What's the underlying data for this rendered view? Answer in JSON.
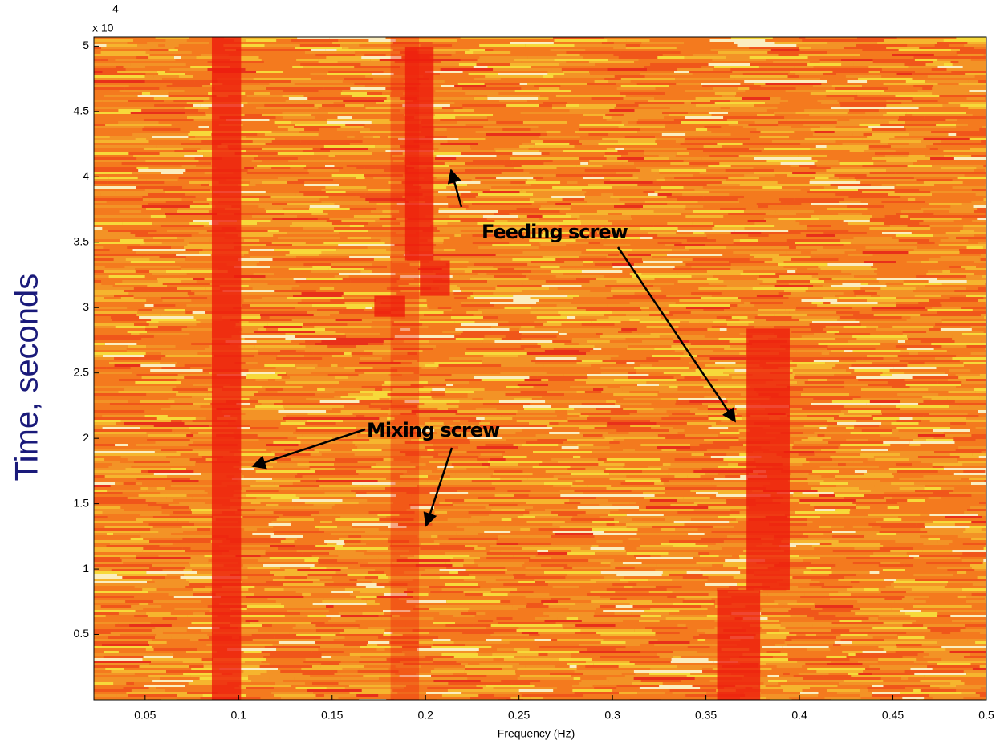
{
  "chart_data": {
    "type": "spectrogram",
    "x_label": "Frequency (Hz)",
    "y_label": "Time, seconds",
    "y_scale_label": "x 10",
    "y_scale_exponent": "4",
    "xlim": [
      0.0226,
      0.5
    ],
    "ylim": [
      0,
      5.07
    ],
    "xticks": [
      0.05,
      0.1,
      0.15,
      0.2,
      0.25,
      0.3,
      0.35,
      0.4,
      0.45,
      0.5
    ],
    "yticks": [
      0.5,
      1,
      1.5,
      2,
      2.5,
      3,
      3.5,
      4,
      4.5,
      5
    ],
    "band_color": "#ee1c0c",
    "bands": [
      {
        "x": [
          0.0857,
          0.1013
        ],
        "y": [
          0,
          5.07
        ]
      },
      {
        "x": [
          0.1813,
          0.1965
        ],
        "y": [
          0,
          5.07
        ]
      },
      {
        "x": [
          0.1891,
          0.2043
        ],
        "y": [
          3.36,
          4.99
        ]
      },
      {
        "x": [
          0.197,
          0.213
        ],
        "y": [
          3.09,
          3.36
        ]
      },
      {
        "x": [
          0.1726,
          0.1891
        ],
        "y": [
          2.93,
          3.09
        ]
      },
      {
        "x": [
          0.3717,
          0.3948
        ],
        "y": [
          0.84,
          2.84
        ]
      },
      {
        "x": [
          0.356,
          0.379
        ],
        "y": [
          0,
          0.84
        ]
      }
    ],
    "annotations": [
      {
        "text": "Feeding screw"
      },
      {
        "text": "Mixing screw"
      }
    ]
  }
}
